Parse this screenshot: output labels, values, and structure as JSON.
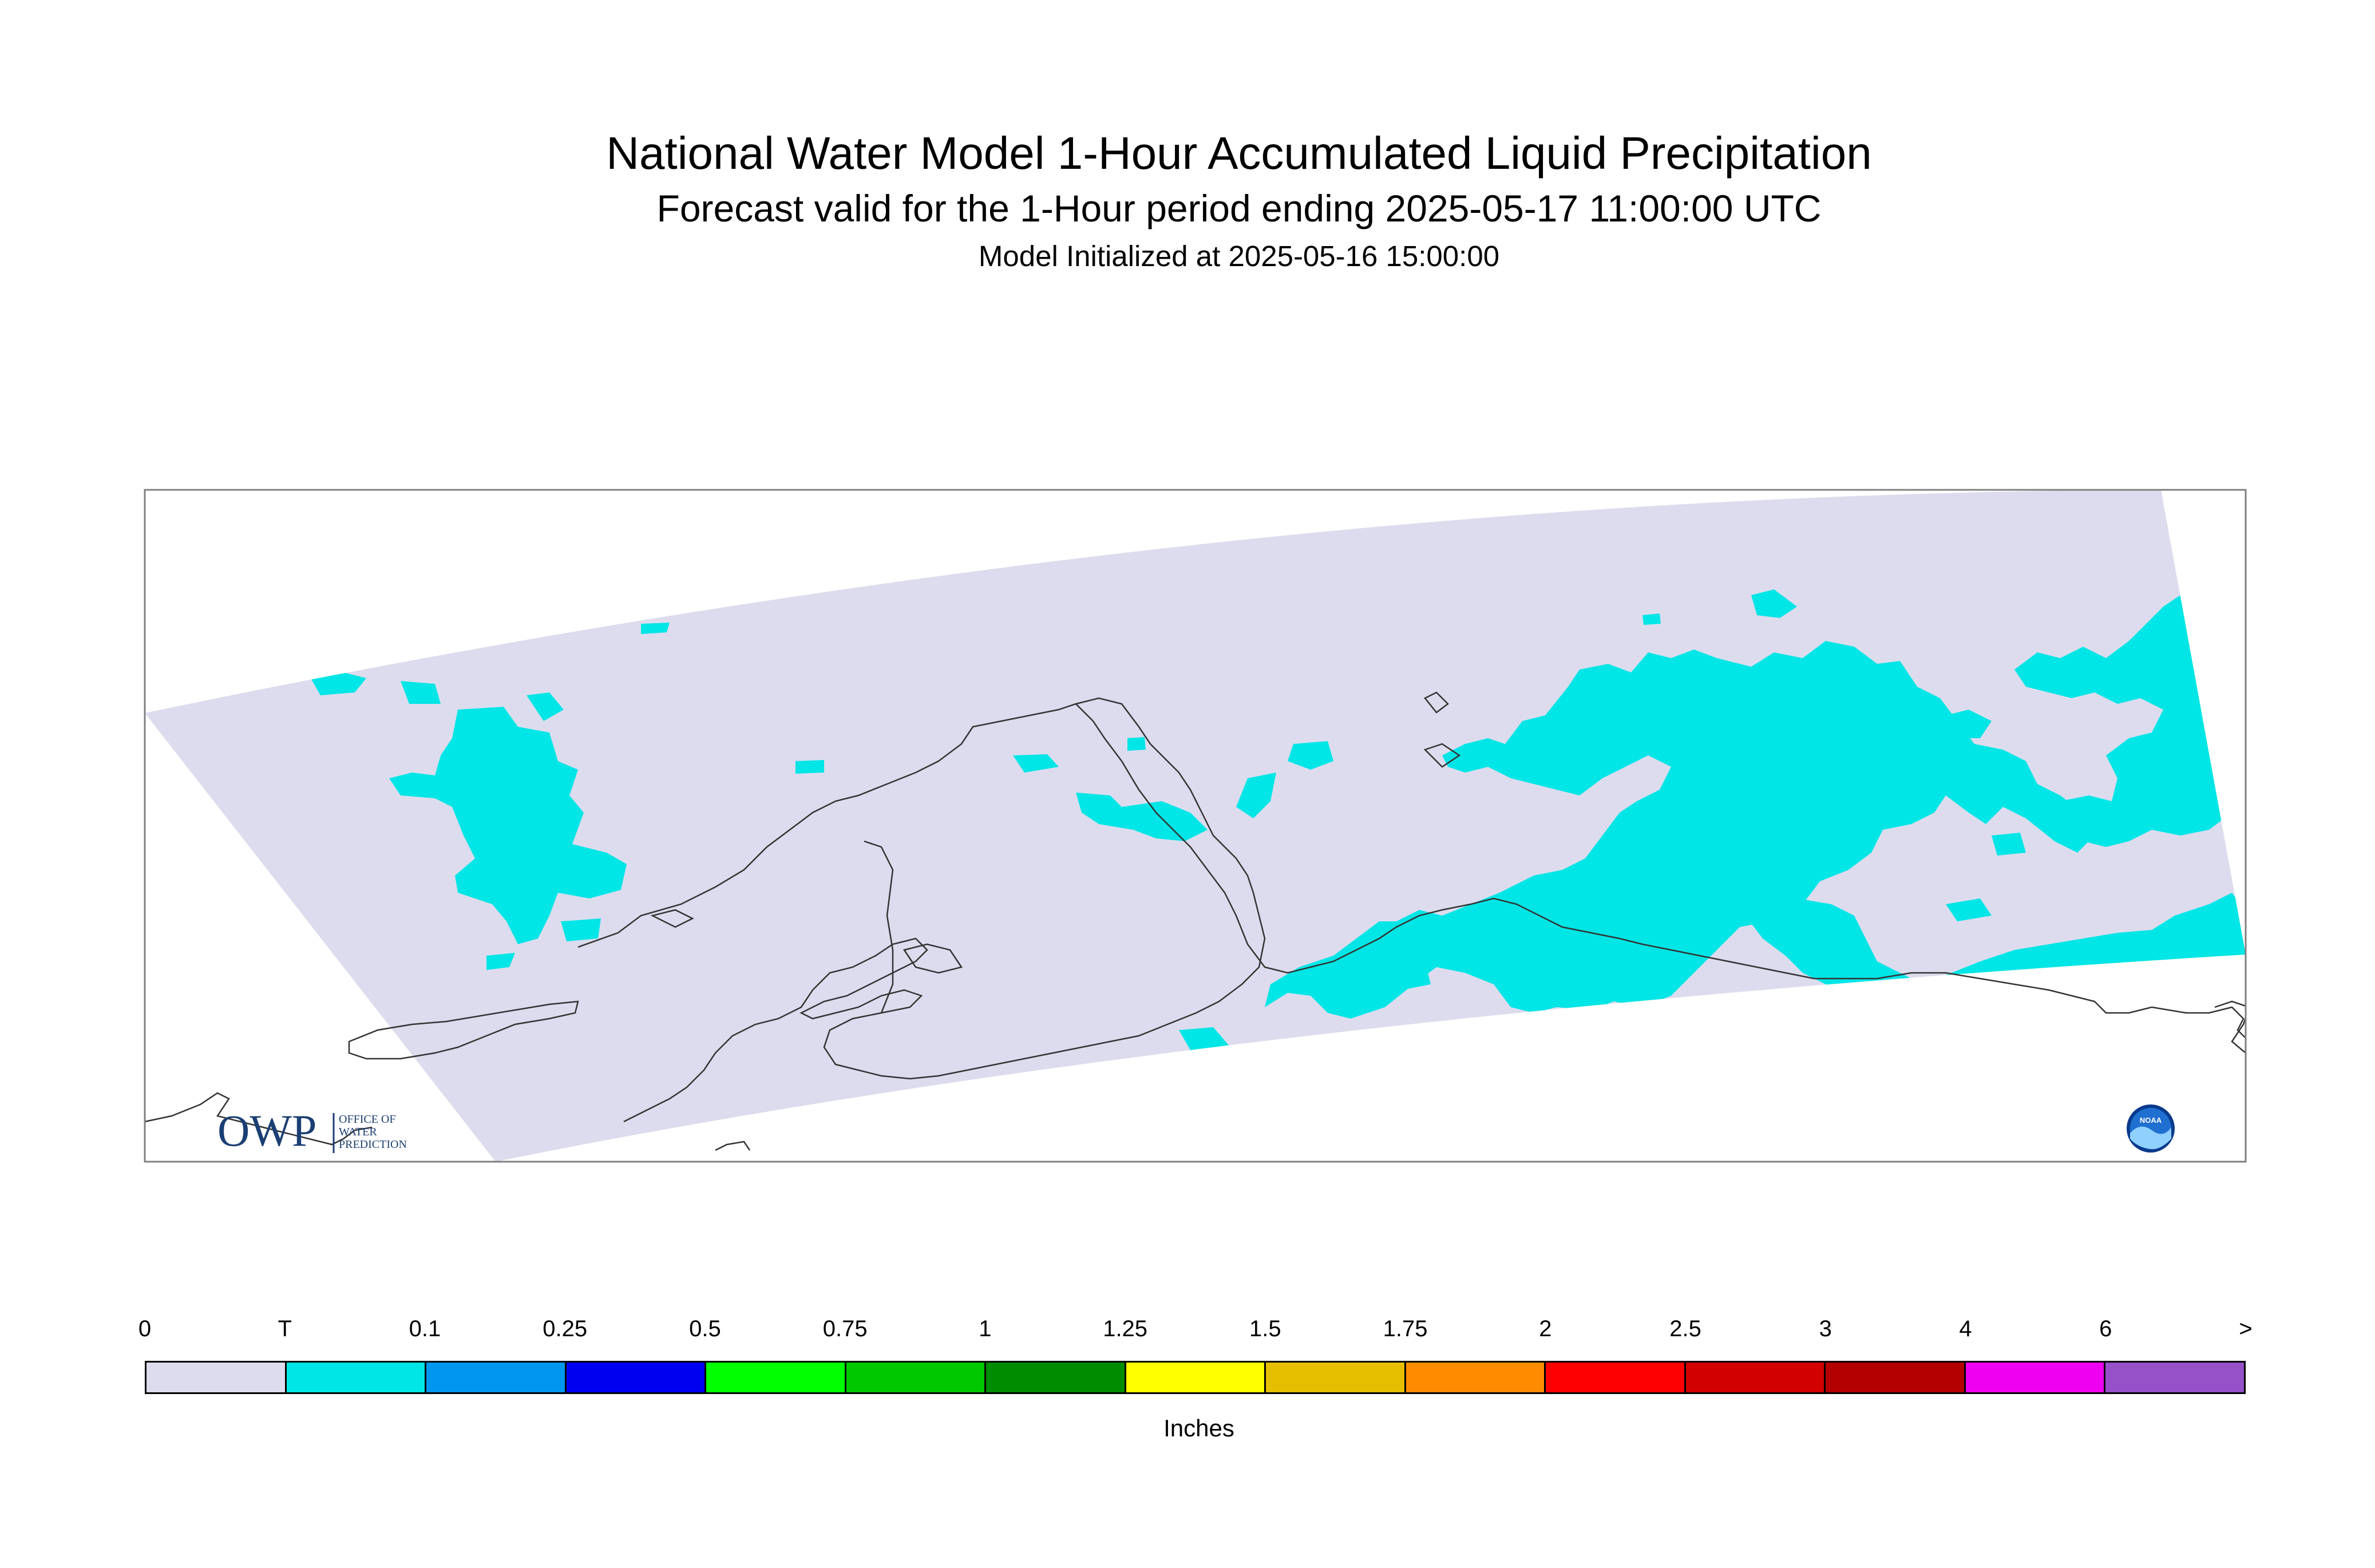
{
  "header": {
    "title": "National Water Model 1-Hour Accumulated Liquid Precipitation",
    "subtitle": "Forecast valid for the 1-Hour period ending 2025-05-17 11:00:00 UTC",
    "initialized": "Model Initialized at 2025-05-16 15:00:00"
  },
  "map": {
    "background_color": "#dcdcee",
    "precip_color": "#00e6e6",
    "coastline_color": "#333333"
  },
  "logos": {
    "owp": {
      "mark": "OWP",
      "line1": "OFFICE OF",
      "line2": "WATER",
      "line3": "PREDICTION"
    },
    "noaa": {
      "text": "NOAA"
    }
  },
  "legend": {
    "tick_labels": [
      "0",
      "T",
      "0.1",
      "0.25",
      "0.5",
      "0.75",
      "1",
      "1.25",
      "1.5",
      "1.75",
      "2",
      "2.5",
      "3",
      "4",
      "6",
      ">"
    ],
    "colors": [
      "#dcdcee",
      "#00e6e6",
      "#0096f0",
      "#0000f0",
      "#00ff00",
      "#00c800",
      "#008c00",
      "#ffff00",
      "#e6be00",
      "#ff8c00",
      "#ff0000",
      "#d20000",
      "#b40000",
      "#f000f0",
      "#9650c8"
    ],
    "units": "Inches"
  }
}
